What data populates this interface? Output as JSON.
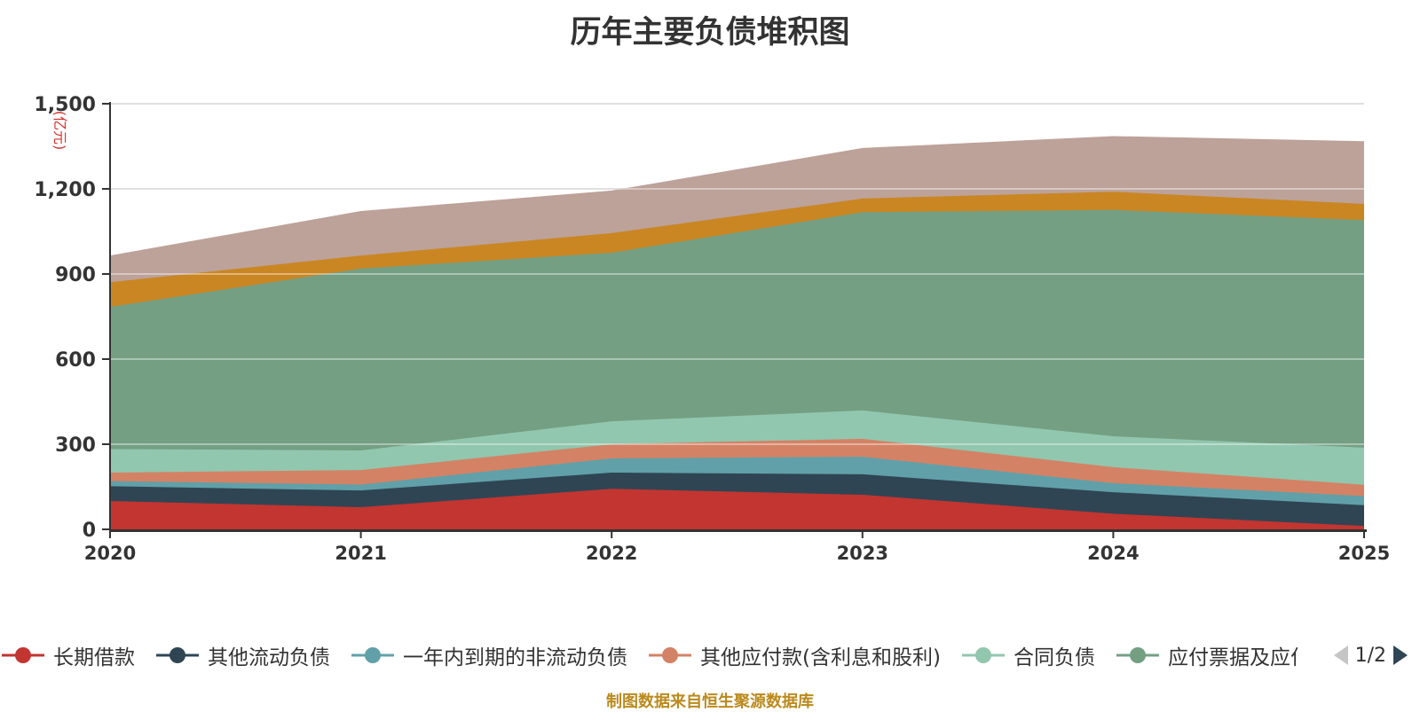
{
  "title": "历年主要负债堆积图",
  "y_axis": {
    "unit_label": "(亿元)",
    "unit_label_color": "#d0342c",
    "tick_labels": [
      "0",
      "300",
      "600",
      "900",
      "1,200",
      "1,500"
    ]
  },
  "x_axis": {
    "tick_labels": [
      "2020",
      "2021",
      "2022",
      "2023",
      "2024",
      "2025"
    ]
  },
  "legend": {
    "page_indicator": "1/2",
    "items": [
      {
        "label": "长期借款",
        "color": "#c23531"
      },
      {
        "label": "其他流动负债",
        "color": "#2f4554"
      },
      {
        "label": "一年内到期的非流动负债",
        "color": "#61a0a8"
      },
      {
        "label": "其他应付款(含利息和股利)",
        "color": "#d48265"
      },
      {
        "label": "合同负债",
        "color": "#91c7ae"
      },
      {
        "label": "应付票据及应付",
        "color": "#749f83",
        "truncated": true
      }
    ]
  },
  "footer": {
    "source_note": "制图数据来自恒生聚源数据库"
  },
  "chart_data": {
    "type": "area",
    "stacked": true,
    "title": "历年主要负债堆积图",
    "ylabel": "(亿元)",
    "ylim": [
      0,
      1500
    ],
    "grid": true,
    "legend_position": "bottom",
    "x": [
      2020,
      2021,
      2022,
      2023,
      2024,
      2025
    ],
    "series": [
      {
        "name": "长期借款",
        "color": "#c23531",
        "values": [
          100,
          78,
          143,
          122,
          55,
          12
        ]
      },
      {
        "name": "其他流动负债",
        "color": "#2f4554",
        "values": [
          52,
          59,
          57,
          72,
          76,
          73
        ]
      },
      {
        "name": "一年内到期的非流动负债",
        "color": "#61a0a8",
        "values": [
          18,
          21,
          50,
          62,
          32,
          32
        ]
      },
      {
        "name": "其他应付款(含利息和股利)",
        "color": "#d48265",
        "values": [
          30,
          51,
          50,
          63,
          56,
          40
        ]
      },
      {
        "name": "合同负债",
        "color": "#91c7ae",
        "values": [
          83,
          69,
          81,
          100,
          109,
          131
        ]
      },
      {
        "name": "应付票据及应付",
        "color": "#749f83",
        "values": [
          501,
          641,
          594,
          699,
          798,
          802
        ]
      },
      {
        "name": "",
        "color": "#ca8622",
        "values": [
          87,
          46,
          69,
          48,
          64,
          57
        ]
      },
      {
        "name": "",
        "color": "#bda29a",
        "values": [
          94,
          157,
          150,
          178,
          196,
          221
        ]
      }
    ]
  }
}
